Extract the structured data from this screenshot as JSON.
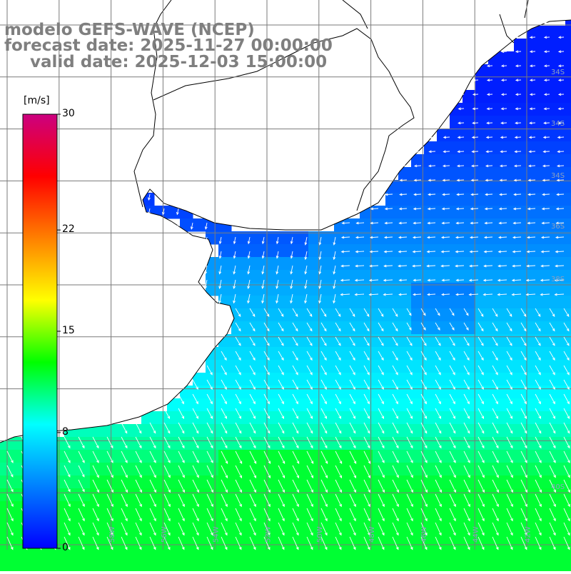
{
  "title": {
    "model": "modelo GEFS-WAVE (NCEP)",
    "forecast": "forecast date: 2025-11-27 00:00:00",
    "valid": "valid date: 2025-12-03 15:00:00"
  },
  "colorbar": {
    "unit": "[m/s]",
    "ticks": [
      "30",
      "22",
      "15",
      "8",
      "0"
    ],
    "tick_values": [
      30,
      22,
      15,
      8,
      0
    ],
    "range": [
      0,
      30
    ],
    "colors": [
      "#0000ff",
      "#0080ff",
      "#00ffff",
      "#00ff00",
      "#ffff00",
      "#ff8000",
      "#ff0000",
      "#cc0080"
    ]
  },
  "map": {
    "land_color": "#ffffff",
    "grid": true,
    "field": "wind speed with direction arrows"
  },
  "lat_labels": [
    "34S",
    "34S",
    "34S",
    "36S",
    "38S",
    "40S"
  ],
  "lon_labels": [
    "58W",
    "56W",
    "54W",
    "52W",
    "50W",
    "48W",
    "46W",
    "44W",
    "42W"
  ]
}
